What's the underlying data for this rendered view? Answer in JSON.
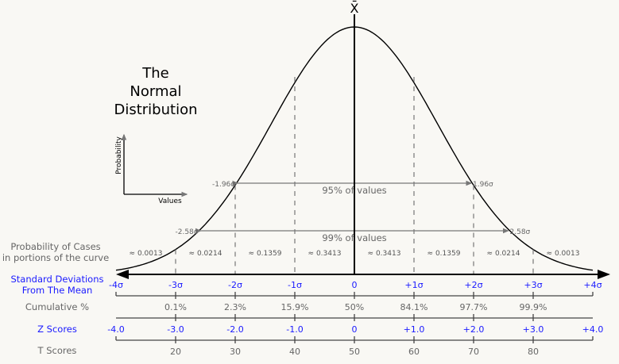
{
  "title_lines": [
    "The",
    "Normal",
    "Distribution"
  ],
  "mean_symbol": "X̄",
  "mini_axes": {
    "y_label": "Probability",
    "x_label": "Values"
  },
  "intervals": [
    {
      "left_label": "-1.96σ",
      "right_label": "1.96σ",
      "text": "95% of values"
    },
    {
      "left_label": "-2.58σ",
      "right_label": "2.58σ",
      "text": "99% of values"
    }
  ],
  "probability_row": {
    "label_lines": [
      "Probability of Cases",
      "in portions of the curve"
    ],
    "values": [
      "≈ 0.0013",
      "≈ 0.0214",
      "≈ 0.1359",
      "≈ 0.3413",
      "≈ 0.3413",
      "≈ 0.1359",
      "≈ 0.0214",
      "≈ 0.0013"
    ]
  },
  "sd_row": {
    "label_lines": [
      "Standard Deviations",
      "From The Mean"
    ],
    "values": [
      "-4σ",
      "-3σ",
      "-2σ",
      "-1σ",
      "0",
      "+1σ",
      "+2σ",
      "+3σ",
      "+4σ"
    ]
  },
  "cumulative_row": {
    "label": "Cumulative %",
    "values": [
      "",
      "0.1%",
      "2.3%",
      "15.9%",
      "50%",
      "84.1%",
      "97.7%",
      "99.9%",
      ""
    ]
  },
  "z_row": {
    "label": "Z Scores",
    "values": [
      "-4.0",
      "-3.0",
      "-2.0",
      "-1.0",
      "0",
      "+1.0",
      "+2.0",
      "+3.0",
      "+4.0"
    ]
  },
  "t_row": {
    "label": "T Scores",
    "values": [
      "",
      "20",
      "30",
      "40",
      "50",
      "60",
      "70",
      "80",
      ""
    ]
  },
  "colors": {
    "blue": "#1a1aff",
    "gray": "#666666",
    "line": "#000000"
  }
}
